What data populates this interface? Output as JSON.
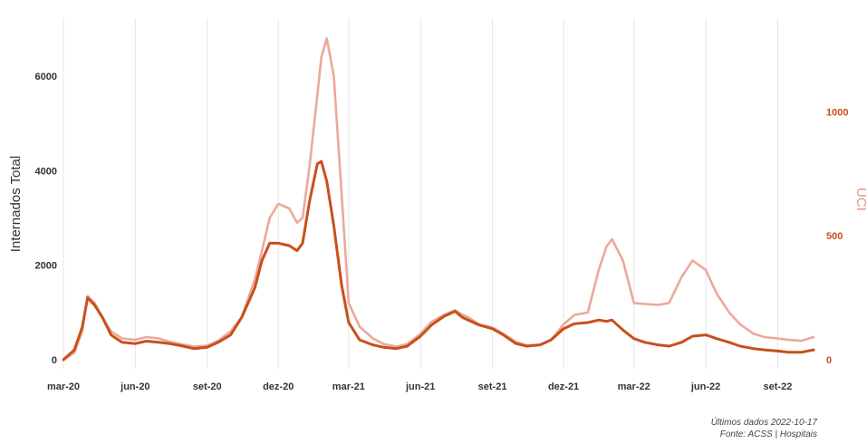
{
  "chart_data": {
    "type": "line",
    "title": "",
    "xlabel": "",
    "ylabel": "Internados Total",
    "y2label": "UCI",
    "x_ticks": [
      "mar-20",
      "jun-20",
      "set-20",
      "dez-20",
      "mar-21",
      "jun-21",
      "set-21",
      "dez-21",
      "mar-22",
      "jun-22",
      "set-22"
    ],
    "ylim": [
      0,
      7000
    ],
    "y_ticks": [
      0,
      2000,
      4000,
      6000
    ],
    "y2lim": [
      0,
      1250
    ],
    "y2_ticks": [
      0,
      500,
      1000
    ],
    "grid": "vertical",
    "legend": "none",
    "colors": {
      "total": "#eba99a",
      "uci": "#c8501a",
      "right_axis": "#c8501a"
    },
    "x": [
      "2020-03-01",
      "2020-03-15",
      "2020-03-25",
      "2020-04-01",
      "2020-04-10",
      "2020-04-20",
      "2020-05-01",
      "2020-05-15",
      "2020-06-01",
      "2020-06-15",
      "2020-07-01",
      "2020-07-15",
      "2020-08-01",
      "2020-08-15",
      "2020-09-01",
      "2020-09-15",
      "2020-10-01",
      "2020-10-15",
      "2020-11-01",
      "2020-11-10",
      "2020-11-20",
      "2020-12-01",
      "2020-12-15",
      "2020-12-25",
      "2021-01-01",
      "2021-01-10",
      "2021-01-20",
      "2021-01-25",
      "2021-02-01",
      "2021-02-10",
      "2021-02-20",
      "2021-03-01",
      "2021-03-15",
      "2021-04-01",
      "2021-04-15",
      "2021-05-01",
      "2021-05-15",
      "2021-06-01",
      "2021-06-15",
      "2021-07-01",
      "2021-07-15",
      "2021-07-25",
      "2021-08-01",
      "2021-08-15",
      "2021-09-01",
      "2021-09-15",
      "2021-10-01",
      "2021-10-15",
      "2021-11-01",
      "2021-11-15",
      "2021-12-01",
      "2021-12-15",
      "2022-01-01",
      "2022-01-15",
      "2022-01-25",
      "2022-02-01",
      "2022-02-15",
      "2022-03-01",
      "2022-03-15",
      "2022-04-01",
      "2022-04-15",
      "2022-05-01",
      "2022-05-15",
      "2022-06-01",
      "2022-06-15",
      "2022-07-01",
      "2022-07-15",
      "2022-08-01",
      "2022-08-15",
      "2022-09-01",
      "2022-09-15",
      "2022-10-01",
      "2022-10-17"
    ],
    "series": [
      {
        "key": "total",
        "axis": "left",
        "values": [
          0,
          150,
          600,
          1350,
          1200,
          900,
          600,
          450,
          420,
          480,
          450,
          380,
          320,
          280,
          300,
          400,
          600,
          900,
          1700,
          2300,
          3000,
          3300,
          3200,
          2900,
          3000,
          4100,
          5600,
          6400,
          6800,
          6000,
          3500,
          1200,
          700,
          450,
          330,
          280,
          330,
          550,
          800,
          950,
          1050,
          950,
          900,
          750,
          680,
          550,
          380,
          300,
          320,
          420,
          750,
          950,
          1000,
          1900,
          2400,
          2550,
          2100,
          1200,
          1180,
          1160,
          1200,
          1750,
          2100,
          1900,
          1400,
          1000,
          750,
          550,
          480,
          450,
          420,
          400,
          480
        ]
      },
      {
        "key": "uci",
        "axis": "right",
        "values": [
          0,
          40,
          130,
          250,
          220,
          170,
          100,
          70,
          65,
          75,
          70,
          65,
          55,
          45,
          50,
          70,
          100,
          170,
          290,
          400,
          470,
          470,
          460,
          440,
          470,
          640,
          790,
          800,
          720,
          540,
          300,
          150,
          80,
          60,
          50,
          45,
          55,
          95,
          140,
          175,
          195,
          170,
          160,
          140,
          125,
          100,
          65,
          55,
          60,
          80,
          125,
          145,
          150,
          160,
          155,
          160,
          120,
          85,
          70,
          60,
          55,
          70,
          95,
          100,
          85,
          70,
          55,
          45,
          40,
          35,
          30,
          30,
          40
        ]
      }
    ]
  },
  "caption": {
    "line1": "Últimos dados 2022-10-17",
    "line2": "Fonte: ACSS | Hospitais"
  }
}
